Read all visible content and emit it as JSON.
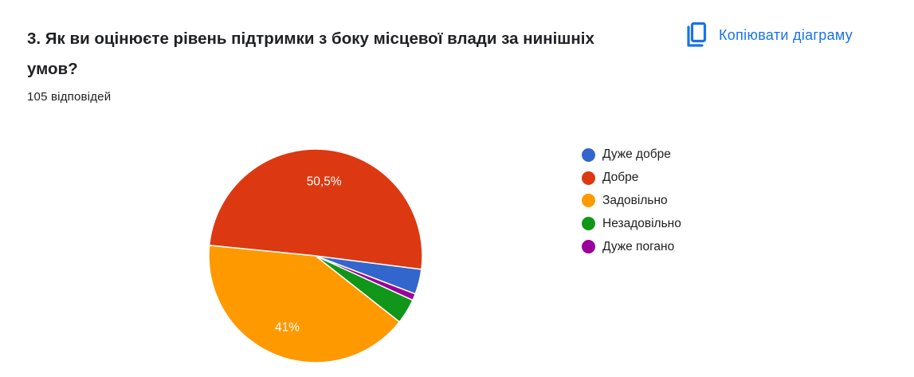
{
  "question": {
    "title": "3. Як ви оцінюєте рівень підтримки з боку місцевої влади за нинішніх умов?",
    "responses": "105 відповідей"
  },
  "toolbar": {
    "copy_label": "Копіювати діаграму",
    "copy_icon": "copy-icon"
  },
  "chart_data": {
    "type": "pie",
    "categories": [
      "Дуже добре",
      "Добре",
      "Задовільно",
      "Незадовільно",
      "Дуже погано"
    ],
    "values": [
      3.8,
      50.5,
      41,
      3.8,
      1
    ],
    "colors": [
      "#3366cc",
      "#dc3912",
      "#ff9900",
      "#109618",
      "#990099"
    ],
    "data_labels": [
      "",
      "50,5%",
      "41%",
      "",
      ""
    ],
    "legend_position": "right"
  }
}
